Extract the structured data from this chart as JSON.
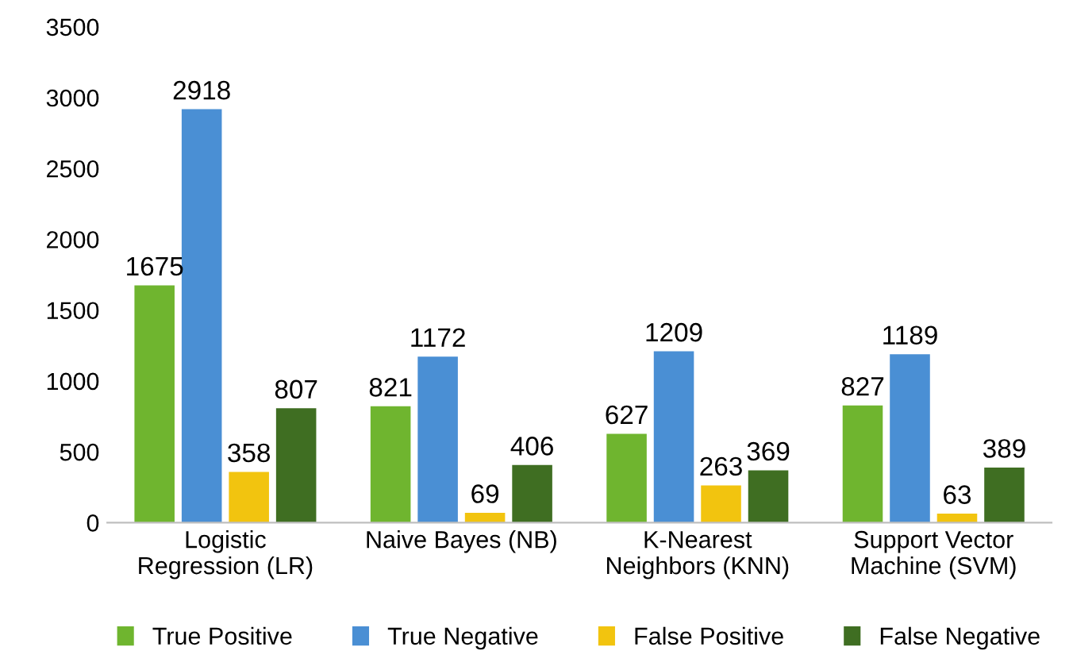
{
  "chart_data": {
    "type": "bar",
    "categories": [
      "Logistic\nRegression (LR)",
      "Naive Bayes (NB)",
      "K-Nearest\nNeighbors (KNN)",
      "Support Vector\nMachine (SVM)"
    ],
    "series": [
      {
        "name": "True Positive",
        "color": "#6fb52f",
        "values": [
          1675,
          821,
          627,
          827
        ]
      },
      {
        "name": "True Negative",
        "color": "#4a8fd4",
        "values": [
          2918,
          1172,
          1209,
          1189
        ]
      },
      {
        "name": "False Positive",
        "color": "#f2c40f",
        "values": [
          358,
          69,
          263,
          63
        ]
      },
      {
        "name": "False Negative",
        "color": "#3f6e22",
        "values": [
          807,
          406,
          369,
          389
        ]
      }
    ],
    "ylim": [
      0,
      3500
    ],
    "yticks": [
      0,
      500,
      1000,
      1500,
      2000,
      2500,
      3000,
      3500
    ],
    "grid": false,
    "legend": "bottom",
    "data_labels": true
  }
}
